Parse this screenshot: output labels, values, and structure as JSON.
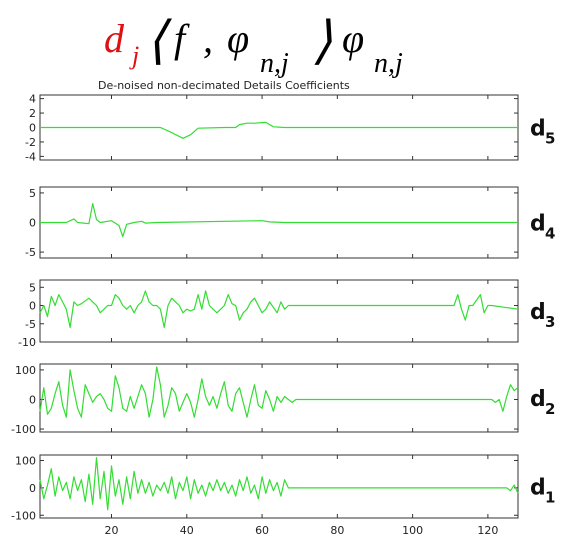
{
  "formula": {
    "d": "d",
    "j": "j",
    "open": "⟨",
    "f": "f",
    "comma": ",",
    "phi": "φ",
    "sub": "n,j",
    "close": "⟩",
    "phi2": "φ",
    "sub2": "n,j"
  },
  "colors": {
    "signal": "#33dd33",
    "formula_red": "#dd1111"
  },
  "chart_data": {
    "type": "line",
    "title": "De-noised non-decimated Details Coefficients",
    "x": {
      "lim": [
        1,
        128
      ],
      "ticks": [
        20,
        40,
        60,
        80,
        100,
        120
      ]
    },
    "panels": [
      {
        "label": "d",
        "sub": "5",
        "ylim": [
          -4.5,
          4.5
        ],
        "yticks": [
          4,
          2,
          0,
          -2,
          -4
        ],
        "points": [
          [
            1,
            0
          ],
          [
            33,
            0
          ],
          [
            36,
            -0.7
          ],
          [
            39,
            -1.5
          ],
          [
            41,
            -1.0
          ],
          [
            43,
            -0.1
          ],
          [
            50,
            0
          ],
          [
            53,
            0
          ],
          [
            54,
            0.4
          ],
          [
            56,
            0.6
          ],
          [
            58,
            0.6
          ],
          [
            61,
            0.7
          ],
          [
            63,
            0.1
          ],
          [
            66,
            0
          ],
          [
            128,
            0
          ]
        ]
      },
      {
        "label": "d",
        "sub": "4",
        "ylim": [
          -6,
          6
        ],
        "yticks": [
          5,
          0,
          -5
        ],
        "points": [
          [
            1,
            0
          ],
          [
            8,
            0
          ],
          [
            10,
            0.6
          ],
          [
            11,
            0
          ],
          [
            14,
            -0.2
          ],
          [
            15,
            3.2
          ],
          [
            16,
            0.5
          ],
          [
            17,
            0
          ],
          [
            20,
            0.3
          ],
          [
            22,
            -0.5
          ],
          [
            23,
            -2.4
          ],
          [
            24,
            -0.3
          ],
          [
            26,
            0
          ],
          [
            28,
            0.2
          ],
          [
            29,
            -0.1
          ],
          [
            32,
            0
          ],
          [
            60,
            0.3
          ],
          [
            62,
            0.1
          ],
          [
            66,
            0
          ],
          [
            128,
            0
          ]
        ]
      },
      {
        "label": "d",
        "sub": "3",
        "ylim": [
          -10,
          7
        ],
        "yticks": [
          5,
          0,
          -5,
          -10
        ],
        "points": [
          [
            1,
            -2
          ],
          [
            2,
            0
          ],
          [
            3,
            -3
          ],
          [
            4,
            2.5
          ],
          [
            5,
            0
          ],
          [
            6,
            3
          ],
          [
            7,
            1
          ],
          [
            8,
            -1
          ],
          [
            9,
            -6
          ],
          [
            10,
            1
          ],
          [
            11,
            0
          ],
          [
            12,
            0.5
          ],
          [
            14,
            2
          ],
          [
            15,
            1
          ],
          [
            16,
            0
          ],
          [
            17,
            -2
          ],
          [
            18,
            -1
          ],
          [
            19,
            0
          ],
          [
            20,
            0
          ],
          [
            21,
            3
          ],
          [
            22,
            2
          ],
          [
            23,
            0
          ],
          [
            24,
            -1
          ],
          [
            25,
            0
          ],
          [
            26,
            -2
          ],
          [
            27,
            0
          ],
          [
            28,
            1
          ],
          [
            29,
            4
          ],
          [
            30,
            1
          ],
          [
            31,
            0
          ],
          [
            32,
            0
          ],
          [
            33,
            -1
          ],
          [
            34,
            -6
          ],
          [
            35,
            0
          ],
          [
            36,
            2
          ],
          [
            37,
            1
          ],
          [
            38,
            0
          ],
          [
            39,
            -2
          ],
          [
            40,
            -1
          ],
          [
            41,
            -1.5
          ],
          [
            42,
            -1
          ],
          [
            43,
            3
          ],
          [
            44,
            -1
          ],
          [
            45,
            4
          ],
          [
            46,
            0
          ],
          [
            47,
            -1
          ],
          [
            48,
            -2
          ],
          [
            49,
            -1
          ],
          [
            50,
            0
          ],
          [
            51,
            3
          ],
          [
            52,
            0.5
          ],
          [
            53,
            0
          ],
          [
            54,
            -4
          ],
          [
            55,
            -2
          ],
          [
            56,
            -1
          ],
          [
            57,
            1
          ],
          [
            58,
            2
          ],
          [
            60,
            -2
          ],
          [
            61,
            -1
          ],
          [
            62,
            1
          ],
          [
            64,
            -2
          ],
          [
            65,
            1
          ],
          [
            66,
            -1
          ],
          [
            67,
            0
          ],
          [
            68,
            0
          ],
          [
            128,
            -1
          ],
          [
            110,
            0
          ],
          [
            111,
            0
          ],
          [
            112,
            3
          ],
          [
            113,
            -1
          ],
          [
            114,
            -4
          ],
          [
            115,
            0
          ],
          [
            116,
            0
          ],
          [
            118,
            3
          ],
          [
            119,
            -2
          ],
          [
            120,
            0
          ],
          [
            121,
            0
          ]
        ]
      },
      {
        "label": "d",
        "sub": "2",
        "ylim": [
          -110,
          120
        ],
        "yticks": [
          100,
          0,
          -100
        ],
        "points": [
          [
            1,
            -40
          ],
          [
            2,
            40
          ],
          [
            3,
            -50
          ],
          [
            4,
            -30
          ],
          [
            5,
            20
          ],
          [
            6,
            60
          ],
          [
            7,
            -20
          ],
          [
            8,
            -60
          ],
          [
            9,
            100
          ],
          [
            10,
            30
          ],
          [
            11,
            -30
          ],
          [
            12,
            -60
          ],
          [
            13,
            50
          ],
          [
            14,
            20
          ],
          [
            15,
            -10
          ],
          [
            16,
            10
          ],
          [
            17,
            20
          ],
          [
            18,
            0
          ],
          [
            19,
            -30
          ],
          [
            20,
            -40
          ],
          [
            21,
            80
          ],
          [
            22,
            40
          ],
          [
            23,
            -30
          ],
          [
            24,
            -40
          ],
          [
            25,
            10
          ],
          [
            26,
            -30
          ],
          [
            27,
            10
          ],
          [
            28,
            50
          ],
          [
            29,
            20
          ],
          [
            30,
            -60
          ],
          [
            31,
            0
          ],
          [
            32,
            110
          ],
          [
            33,
            50
          ],
          [
            34,
            -60
          ],
          [
            35,
            -20
          ],
          [
            36,
            40
          ],
          [
            37,
            20
          ],
          [
            38,
            -40
          ],
          [
            39,
            -10
          ],
          [
            40,
            20
          ],
          [
            41,
            -10
          ],
          [
            42,
            -60
          ],
          [
            43,
            0
          ],
          [
            44,
            70
          ],
          [
            45,
            10
          ],
          [
            46,
            -20
          ],
          [
            47,
            10
          ],
          [
            48,
            -30
          ],
          [
            49,
            20
          ],
          [
            50,
            60
          ],
          [
            51,
            -20
          ],
          [
            52,
            -40
          ],
          [
            53,
            20
          ],
          [
            54,
            40
          ],
          [
            55,
            -10
          ],
          [
            56,
            -60
          ],
          [
            57,
            0
          ],
          [
            58,
            50
          ],
          [
            59,
            -20
          ],
          [
            60,
            -30
          ],
          [
            61,
            30
          ],
          [
            62,
            0
          ],
          [
            63,
            -40
          ],
          [
            64,
            10
          ],
          [
            65,
            -10
          ],
          [
            66,
            10
          ],
          [
            67,
            0
          ],
          [
            68,
            -10
          ],
          [
            69,
            0
          ],
          [
            70,
            0
          ],
          [
            121,
            0
          ],
          [
            122,
            -10
          ],
          [
            123,
            0
          ],
          [
            124,
            -40
          ],
          [
            125,
            10
          ],
          [
            126,
            50
          ],
          [
            127,
            30
          ],
          [
            128,
            40
          ]
        ]
      },
      {
        "label": "d",
        "sub": "1",
        "ylim": [
          -110,
          120
        ],
        "yticks": [
          100,
          0,
          -100
        ],
        "points": [
          [
            1,
            30
          ],
          [
            2,
            -40
          ],
          [
            3,
            10
          ],
          [
            4,
            70
          ],
          [
            5,
            -30
          ],
          [
            6,
            40
          ],
          [
            7,
            -10
          ],
          [
            8,
            20
          ],
          [
            9,
            -40
          ],
          [
            10,
            40
          ],
          [
            11,
            -10
          ],
          [
            12,
            30
          ],
          [
            13,
            -50
          ],
          [
            14,
            50
          ],
          [
            15,
            -60
          ],
          [
            16,
            110
          ],
          [
            17,
            -40
          ],
          [
            18,
            60
          ],
          [
            19,
            -80
          ],
          [
            20,
            80
          ],
          [
            21,
            -30
          ],
          [
            22,
            30
          ],
          [
            23,
            -60
          ],
          [
            24,
            40
          ],
          [
            25,
            -40
          ],
          [
            26,
            60
          ],
          [
            27,
            -20
          ],
          [
            28,
            30
          ],
          [
            29,
            -20
          ],
          [
            30,
            20
          ],
          [
            31,
            -30
          ],
          [
            32,
            10
          ],
          [
            33,
            -10
          ],
          [
            34,
            20
          ],
          [
            35,
            -20
          ],
          [
            36,
            40
          ],
          [
            37,
            -40
          ],
          [
            38,
            20
          ],
          [
            39,
            -10
          ],
          [
            40,
            40
          ],
          [
            41,
            -40
          ],
          [
            42,
            30
          ],
          [
            43,
            -20
          ],
          [
            44,
            10
          ],
          [
            45,
            -30
          ],
          [
            46,
            20
          ],
          [
            47,
            -10
          ],
          [
            48,
            30
          ],
          [
            49,
            -10
          ],
          [
            50,
            20
          ],
          [
            51,
            -20
          ],
          [
            52,
            10
          ],
          [
            53,
            -30
          ],
          [
            54,
            30
          ],
          [
            55,
            -10
          ],
          [
            56,
            40
          ],
          [
            57,
            -20
          ],
          [
            58,
            10
          ],
          [
            59,
            -40
          ],
          [
            60,
            40
          ],
          [
            61,
            -20
          ],
          [
            62,
            30
          ],
          [
            63,
            -10
          ],
          [
            64,
            20
          ],
          [
            65,
            -30
          ],
          [
            66,
            30
          ],
          [
            67,
            0
          ],
          [
            68,
            0
          ],
          [
            125,
            0
          ],
          [
            126,
            -10
          ],
          [
            127,
            10
          ],
          [
            128,
            -20
          ]
        ]
      }
    ]
  }
}
